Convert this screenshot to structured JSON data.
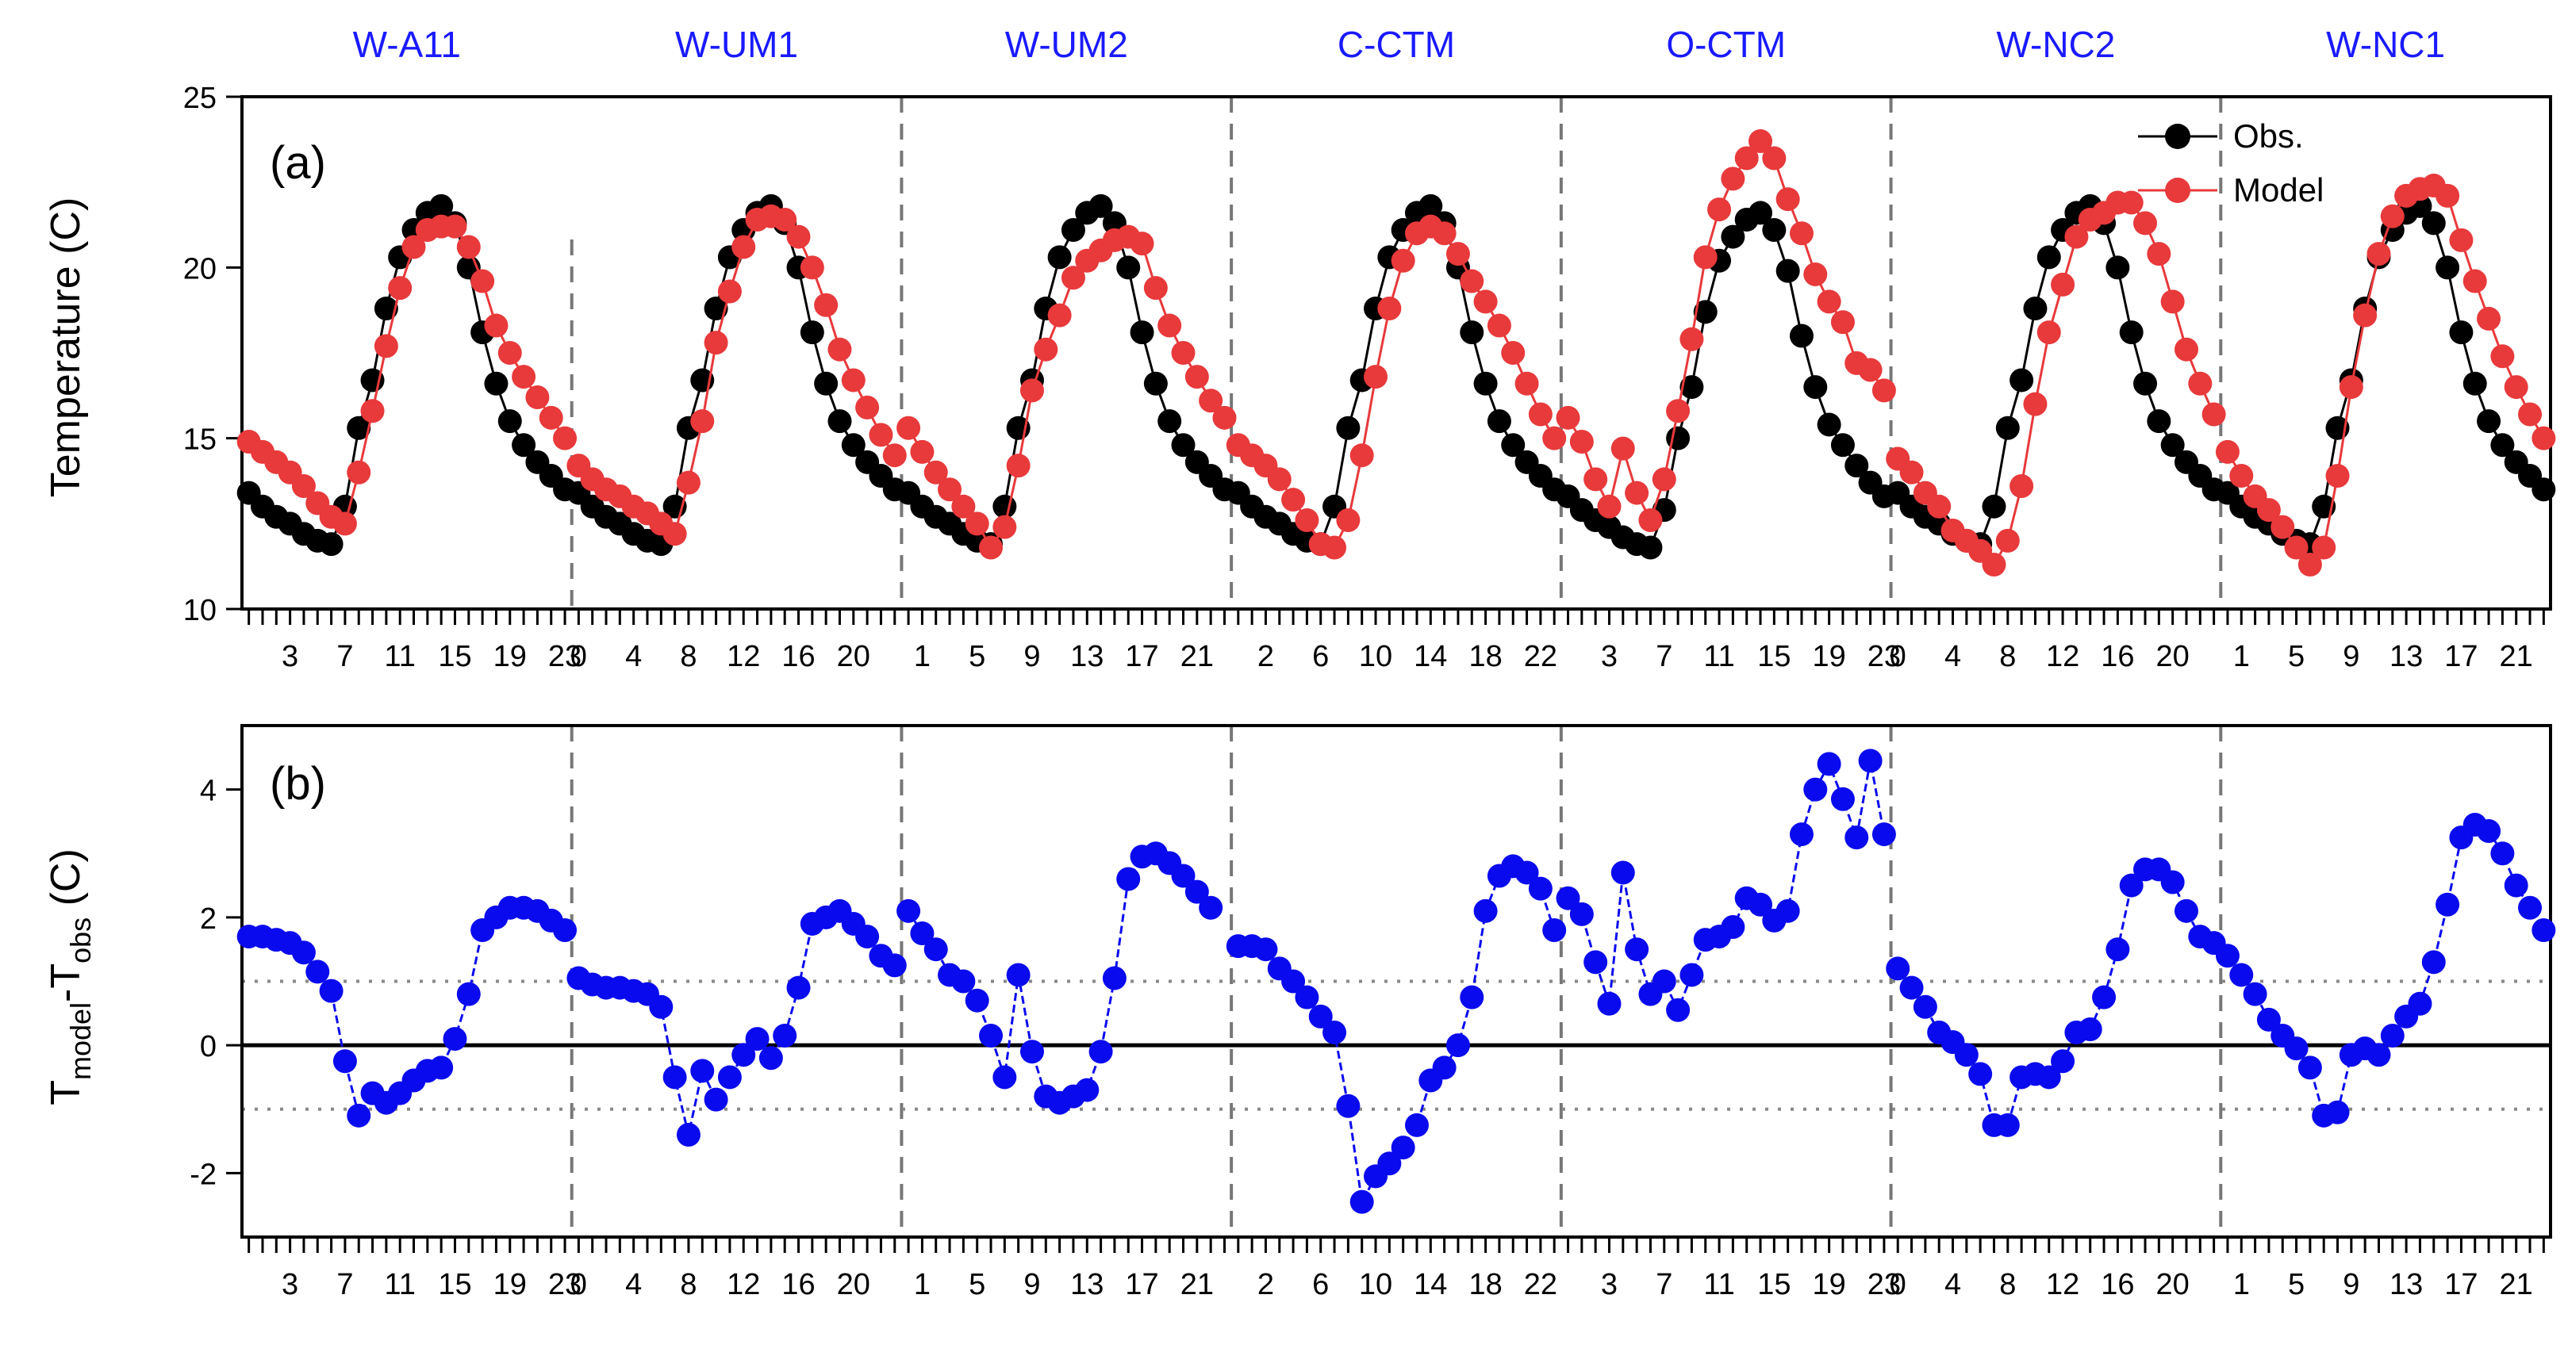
{
  "colors": {
    "obs": "#000000",
    "model": "#e8393b",
    "bias": "#0a0aee",
    "site": "#1a1aff"
  },
  "chart_data": [
    {
      "type": "line",
      "panel": "(a)",
      "ylabel": "Temperature (C)",
      "ylim": [
        10,
        25
      ],
      "yticks": [
        10,
        15,
        20,
        25
      ],
      "legend": {
        "placement": "top-right",
        "obs": "Obs.",
        "model": "Model"
      },
      "sites": [
        "W-A11",
        "W-UM1",
        "W-UM2",
        "C-CTM",
        "O-CTM",
        "W-NC2",
        "W-NC1"
      ],
      "x_tick_labels": [
        [
          "3",
          "7",
          "11",
          "15",
          "19",
          "23"
        ],
        [
          "0",
          "4",
          "8",
          "12",
          "16",
          "20"
        ],
        [
          "1",
          "5",
          "9",
          "13",
          "17",
          "21"
        ],
        [
          "2",
          "6",
          "10",
          "14",
          "18",
          "22"
        ],
        [
          "3",
          "7",
          "11",
          "15",
          "19",
          "23"
        ],
        [
          "0",
          "4",
          "8",
          "12",
          "16",
          "20"
        ],
        [
          "1",
          "5",
          "9",
          "13",
          "17",
          "21"
        ]
      ],
      "series": [
        {
          "name": "Obs.",
          "values_by_site": [
            [
              13.4,
              13.0,
              12.7,
              12.5,
              12.2,
              12.0,
              11.9,
              13.0,
              15.3,
              16.7,
              18.8,
              20.3,
              21.1,
              21.6,
              21.8,
              21.3,
              20.0,
              18.1,
              16.6,
              15.5,
              14.8,
              14.3,
              13.9,
              13.5
            ],
            [
              13.4,
              13.0,
              12.7,
              12.5,
              12.2,
              12.0,
              11.9,
              13.0,
              15.3,
              16.7,
              18.8,
              20.3,
              21.1,
              21.6,
              21.8,
              21.3,
              20.0,
              18.1,
              16.6,
              15.5,
              14.8,
              14.3,
              13.9,
              13.5
            ],
            [
              13.4,
              13.0,
              12.7,
              12.5,
              12.2,
              12.0,
              11.9,
              13.0,
              15.3,
              16.7,
              18.8,
              20.3,
              21.1,
              21.6,
              21.8,
              21.3,
              20.0,
              18.1,
              16.6,
              15.5,
              14.8,
              14.3,
              13.9,
              13.5
            ],
            [
              13.4,
              13.0,
              12.7,
              12.5,
              12.2,
              12.0,
              11.9,
              13.0,
              15.3,
              16.7,
              18.8,
              20.3,
              21.1,
              21.6,
              21.8,
              21.3,
              20.0,
              18.1,
              16.6,
              15.5,
              14.8,
              14.3,
              13.9,
              13.5
            ],
            [
              13.3,
              12.9,
              12.6,
              12.4,
              12.1,
              11.9,
              11.8,
              12.9,
              15.0,
              16.5,
              18.7,
              20.2,
              20.9,
              21.4,
              21.6,
              21.1,
              19.9,
              18.0,
              16.5,
              15.4,
              14.8,
              14.2,
              13.7,
              13.3
            ],
            [
              13.4,
              13.0,
              12.7,
              12.5,
              12.2,
              12.0,
              11.9,
              13.0,
              15.3,
              16.7,
              18.8,
              20.3,
              21.1,
              21.6,
              21.8,
              21.3,
              20.0,
              18.1,
              16.6,
              15.5,
              14.8,
              14.3,
              13.9,
              13.5
            ],
            [
              13.4,
              13.0,
              12.7,
              12.5,
              12.2,
              12.0,
              11.9,
              13.0,
              15.3,
              16.7,
              18.8,
              20.3,
              21.1,
              21.6,
              21.8,
              21.3,
              20.0,
              18.1,
              16.6,
              15.5,
              14.8,
              14.3,
              13.9,
              13.5
            ]
          ]
        },
        {
          "name": "Model",
          "values_by_site": [
            [
              14.9,
              14.6,
              14.3,
              14.0,
              13.6,
              13.1,
              12.7,
              12.5,
              14.0,
              15.8,
              17.7,
              19.4,
              20.6,
              21.1,
              21.2,
              21.2,
              20.6,
              19.6,
              18.3,
              17.5,
              16.8,
              16.2,
              15.6,
              15.0
            ],
            [
              14.2,
              13.8,
              13.5,
              13.3,
              13.0,
              12.8,
              12.5,
              12.2,
              13.7,
              15.5,
              17.8,
              19.3,
              20.6,
              21.4,
              21.5,
              21.4,
              20.9,
              20.0,
              18.9,
              17.6,
              16.7,
              15.9,
              15.1,
              14.5
            ],
            [
              15.3,
              14.6,
              14.0,
              13.5,
              13.0,
              12.5,
              11.8,
              12.4,
              14.2,
              16.4,
              17.6,
              18.6,
              19.7,
              20.2,
              20.5,
              20.8,
              20.9,
              20.7,
              19.4,
              18.3,
              17.5,
              16.8,
              16.1,
              15.6
            ],
            [
              14.8,
              14.5,
              14.2,
              13.8,
              13.2,
              12.6,
              11.9,
              11.8,
              12.6,
              14.5,
              16.8,
              18.8,
              20.2,
              21.0,
              21.2,
              21.0,
              20.4,
              19.6,
              19.0,
              18.3,
              17.5,
              16.6,
              15.7,
              15.0
            ],
            [
              15.6,
              14.9,
              13.8,
              13.0,
              14.7,
              13.4,
              12.6,
              13.8,
              15.8,
              17.9,
              20.3,
              21.7,
              22.6,
              23.2,
              23.7,
              23.2,
              22.0,
              21.0,
              19.8,
              19.0,
              18.4,
              17.2,
              17.0,
              16.4
            ],
            [
              14.4,
              14.0,
              13.4,
              13.0,
              12.3,
              12.0,
              11.7,
              11.3,
              12.0,
              13.6,
              16.0,
              18.1,
              19.5,
              20.9,
              21.4,
              21.6,
              21.9,
              21.9,
              21.3,
              20.4,
              19.0,
              17.6,
              16.6,
              15.7
            ],
            [
              14.6,
              13.9,
              13.3,
              12.9,
              12.4,
              11.8,
              11.3,
              11.8,
              13.9,
              16.5,
              18.6,
              20.4,
              21.5,
              22.1,
              22.3,
              22.4,
              22.1,
              20.8,
              19.6,
              18.5,
              17.4,
              16.5,
              15.7,
              15.0
            ]
          ]
        }
      ]
    },
    {
      "type": "line",
      "panel": "(b)",
      "ylabel_main": "T",
      "ylabel_sub1": "model",
      "ylabel_mid": "-T",
      "ylabel_sub2": "obs",
      "ylabel_tail": " (C)",
      "ylim": [
        -3,
        5
      ],
      "yticks": [
        -2,
        0,
        2,
        4
      ],
      "tick_labels_y": [
        "-2",
        "0",
        "2",
        "4"
      ],
      "ref_lines": [
        0,
        1,
        -1
      ],
      "sites": [
        "W-A11",
        "W-UM1",
        "W-UM2",
        "C-CTM",
        "O-CTM",
        "W-NC2",
        "W-NC1"
      ],
      "x_tick_labels": [
        [
          "3",
          "7",
          "11",
          "15",
          "19",
          "23"
        ],
        [
          "0",
          "4",
          "8",
          "12",
          "16",
          "20"
        ],
        [
          "1",
          "5",
          "9",
          "13",
          "17",
          "21"
        ],
        [
          "2",
          "6",
          "10",
          "14",
          "18",
          "22"
        ],
        [
          "3",
          "7",
          "11",
          "15",
          "19",
          "23"
        ],
        [
          "0",
          "4",
          "8",
          "12",
          "16",
          "20"
        ],
        [
          "1",
          "5",
          "9",
          "13",
          "17",
          "21"
        ]
      ],
      "series": [
        {
          "name": "Tmodel-Tobs",
          "values_by_site": [
            [
              1.7,
              1.7,
              1.65,
              1.6,
              1.45,
              1.15,
              0.85,
              -0.25,
              -1.1,
              -0.75,
              -0.9,
              -0.75,
              -0.55,
              -0.4,
              -0.35,
              0.1,
              0.8,
              1.8,
              2.0,
              2.15,
              2.15,
              2.1,
              1.95,
              1.8
            ],
            [
              1.05,
              0.95,
              0.9,
              0.9,
              0.85,
              0.8,
              0.6,
              -0.5,
              -1.4,
              -0.4,
              -0.85,
              -0.5,
              -0.15,
              0.1,
              -0.2,
              0.15,
              0.9,
              1.9,
              2.0,
              2.1,
              1.9,
              1.7,
              1.4,
              1.25
            ],
            [
              2.1,
              1.75,
              1.5,
              1.1,
              1.0,
              0.7,
              0.15,
              -0.5,
              1.1,
              -0.1,
              -0.8,
              -0.9,
              -0.8,
              -0.7,
              -0.1,
              1.05,
              2.6,
              2.95,
              3.0,
              2.85,
              2.65,
              2.4,
              2.15,
              null
            ],
            [
              1.55,
              1.55,
              1.5,
              1.2,
              1.0,
              0.75,
              0.45,
              0.2,
              -0.95,
              -2.45,
              -2.05,
              -1.85,
              -1.6,
              -1.25,
              -0.55,
              -0.35,
              0.0,
              0.75,
              2.1,
              2.65,
              2.8,
              2.7,
              2.45,
              1.8
            ],
            [
              2.3,
              2.05,
              1.3,
              0.65,
              2.7,
              1.5,
              0.8,
              1.0,
              0.55,
              1.1,
              1.65,
              1.7,
              1.85,
              2.3,
              2.2,
              1.95,
              2.1,
              3.3,
              4.0,
              4.4,
              3.85,
              3.25,
              4.45,
              3.3
            ],
            [
              1.2,
              0.9,
              0.6,
              0.2,
              0.05,
              -0.15,
              -0.45,
              -1.25,
              -1.25,
              -0.5,
              -0.45,
              -0.5,
              -0.25,
              0.2,
              0.25,
              0.75,
              1.5,
              2.5,
              2.75,
              2.75,
              2.55,
              2.1,
              1.7,
              1.6
            ],
            [
              1.4,
              1.1,
              0.8,
              0.4,
              0.15,
              -0.05,
              -0.35,
              -1.1,
              -1.05,
              -0.15,
              -0.05,
              -0.15,
              0.15,
              0.45,
              0.65,
              1.3,
              2.2,
              3.25,
              3.45,
              3.35,
              3.0,
              2.5,
              2.15,
              1.8
            ]
          ]
        }
      ]
    }
  ]
}
